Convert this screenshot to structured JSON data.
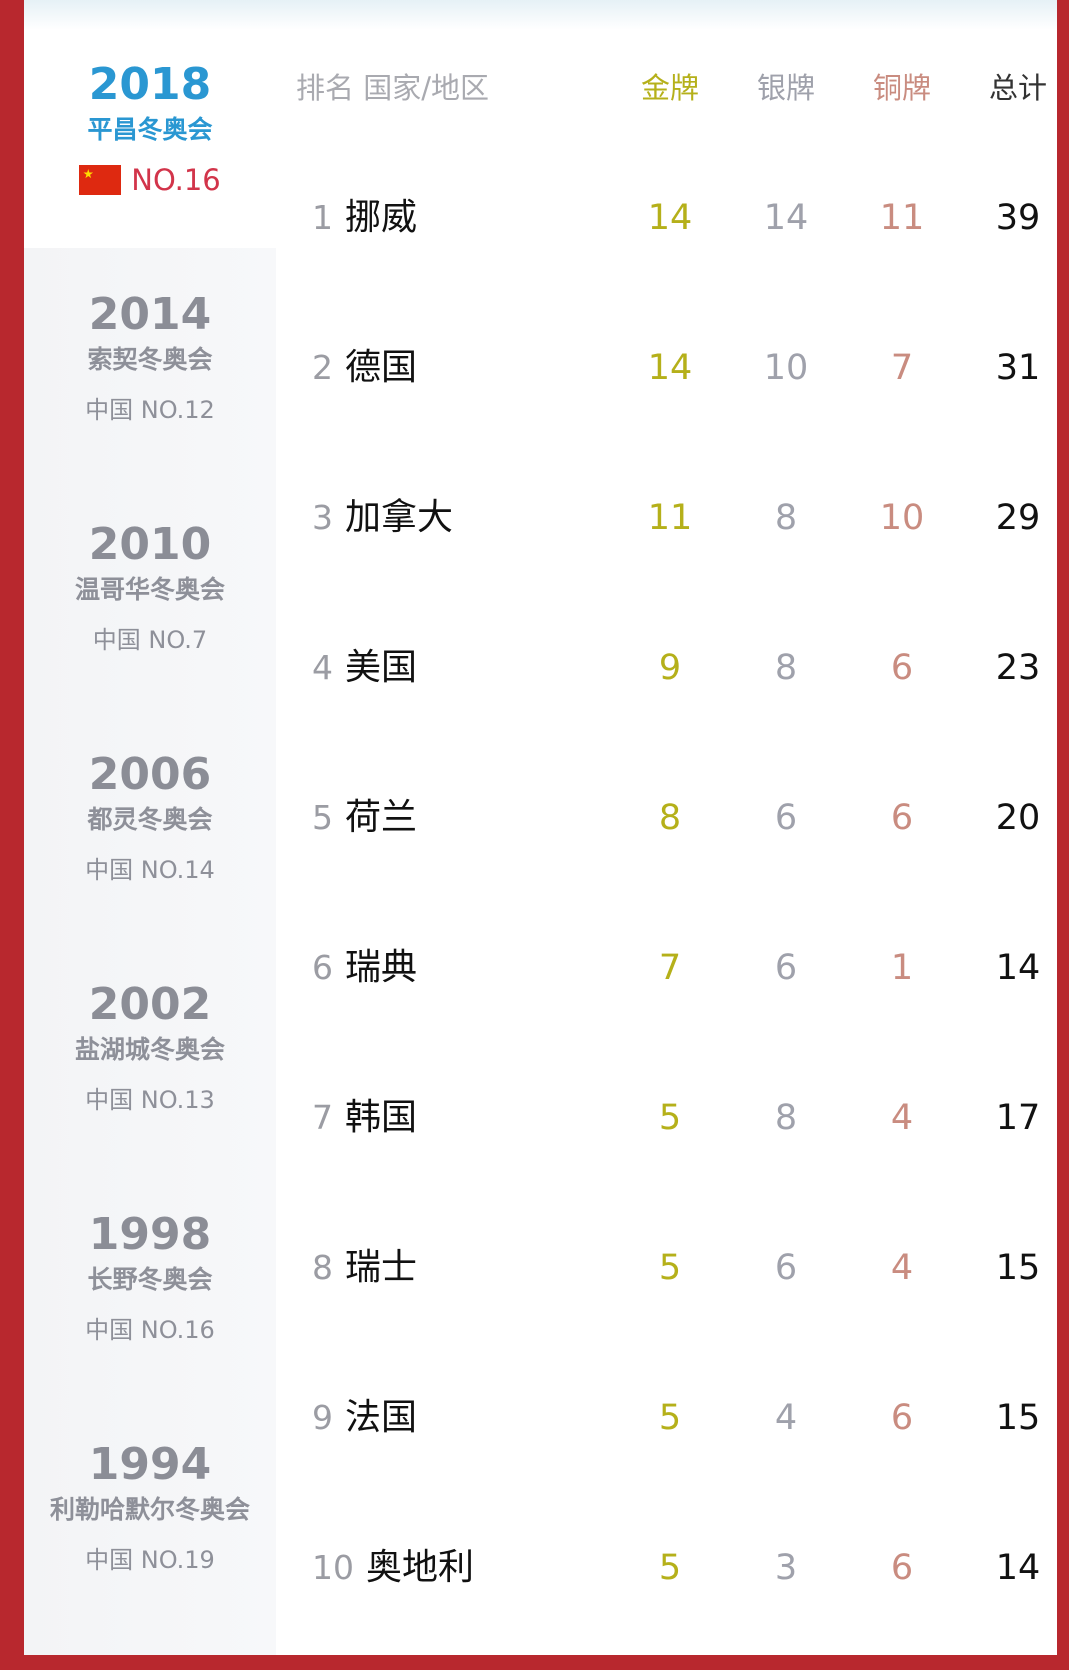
{
  "colors": {
    "gold": "#b5b01a",
    "silver": "#9fa1ab",
    "bronze": "#c98c80",
    "current_games": "#2a97d2",
    "china_rank": "#d2344a",
    "border": "#b8282e"
  },
  "sidebar": [
    {
      "year": "2018",
      "name": "平昌冬奥会",
      "rank": "NO.16",
      "flag_icon": "china-flag-icon",
      "current": true
    },
    {
      "year": "2014",
      "name": "索契冬奥会",
      "rank": "中国 NO.12"
    },
    {
      "year": "2010",
      "name": "温哥华冬奥会",
      "rank": "中国 NO.7"
    },
    {
      "year": "2006",
      "name": "都灵冬奥会",
      "rank": "中国 NO.14"
    },
    {
      "year": "2002",
      "name": "盐湖城冬奥会",
      "rank": "中国 NO.13"
    },
    {
      "year": "1998",
      "name": "长野冬奥会",
      "rank": "中国 NO.16"
    },
    {
      "year": "1994",
      "name": "利勒哈默尔冬奥会",
      "rank": "中国 NO.19"
    }
  ],
  "table": {
    "headers": {
      "rank_country": "排名 国家/地区",
      "gold": "金牌",
      "silver": "银牌",
      "bronze": "铜牌",
      "total": "总计"
    },
    "rows": [
      {
        "rank": "1",
        "country": "挪威",
        "gold": "14",
        "silver": "14",
        "bronze": "11",
        "total": "39"
      },
      {
        "rank": "2",
        "country": "德国",
        "gold": "14",
        "silver": "10",
        "bronze": "7",
        "total": "31"
      },
      {
        "rank": "3",
        "country": "加拿大",
        "gold": "11",
        "silver": "8",
        "bronze": "10",
        "total": "29"
      },
      {
        "rank": "4",
        "country": "美国",
        "gold": "9",
        "silver": "8",
        "bronze": "6",
        "total": "23"
      },
      {
        "rank": "5",
        "country": "荷兰",
        "gold": "8",
        "silver": "6",
        "bronze": "6",
        "total": "20"
      },
      {
        "rank": "6",
        "country": "瑞典",
        "gold": "7",
        "silver": "6",
        "bronze": "1",
        "total": "14"
      },
      {
        "rank": "7",
        "country": "韩国",
        "gold": "5",
        "silver": "8",
        "bronze": "4",
        "total": "17"
      },
      {
        "rank": "8",
        "country": "瑞士",
        "gold": "5",
        "silver": "6",
        "bronze": "4",
        "total": "15"
      },
      {
        "rank": "9",
        "country": "法国",
        "gold": "5",
        "silver": "4",
        "bronze": "6",
        "total": "15"
      },
      {
        "rank": "10",
        "country": "奥地利",
        "gold": "5",
        "silver": "3",
        "bronze": "6",
        "total": "14"
      }
    ]
  }
}
